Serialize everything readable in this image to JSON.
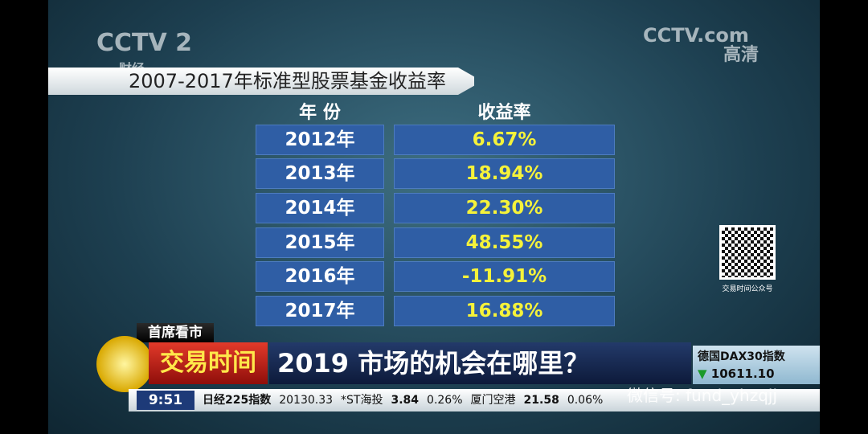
{
  "logo": {
    "channel": "CCTV 2",
    "channel_sub": "财经",
    "site": "CCTV.com",
    "hd": "高清"
  },
  "title": "2007-2017年标准型股票基金收益率",
  "table": {
    "header": [
      "年 份",
      "收益率"
    ],
    "rows": [
      [
        "2012年",
        "6.67%"
      ],
      [
        "2013年",
        "18.94%"
      ],
      [
        "2014年",
        "22.30%"
      ],
      [
        "2015年",
        "48.55%"
      ],
      [
        "2016年",
        "-11.91%"
      ],
      [
        "2017年",
        "16.88%"
      ]
    ]
  },
  "qr_label": "交易时间公众号",
  "banner": {
    "tag": "首席看市",
    "program": "交易时间",
    "headline": "2019 市场的机会在哪里？"
  },
  "index_box": {
    "name": "德国DAX30指数",
    "value": "10611.10"
  },
  "ticker": {
    "time": "9:51",
    "items": [
      "日经225指数",
      "20130.33",
      "*ST海投",
      "3.84",
      "0.26%",
      "厦门空港",
      "21.58",
      "0.06%"
    ]
  },
  "watermark": "微信号: fund_yhzqjj"
}
